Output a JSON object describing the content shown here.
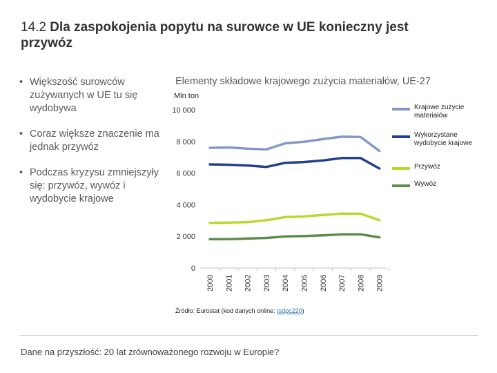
{
  "slide": {
    "number": "14.2",
    "title": "Dla zaspokojenia popytu na surowce w UE konieczny jest przywóz",
    "bullets": [
      "Większość surowców zużywanych w UE tu się wydobywa",
      "Coraz większe znaczenie ma jednak przywóz",
      "Podczas kryzysu zmniejszyły się: przywóz, wywóz i wydobycie krajowe"
    ],
    "footer": "Dane na przyszłość: 20 lat zrównoważonego rozwoju w Europie?"
  },
  "source": {
    "prefix": "Źródło: Eurostat (kod danych online: ",
    "code": "tsdpc220",
    "suffix": ")"
  },
  "chart_data": {
    "type": "line",
    "title": "Elementy składowe krajowego zużycia materiałów, UE-27",
    "unit_label": "Mln ton",
    "x": [
      "2000",
      "2001",
      "2002",
      "2003",
      "2004",
      "2005",
      "2006",
      "2007",
      "2008",
      "2009"
    ],
    "ylim": [
      0,
      10000
    ],
    "y_ticks": [
      0,
      2000,
      4000,
      6000,
      8000,
      10000
    ],
    "y_tick_labels": [
      "0",
      "2 000",
      "4 000",
      "6 000",
      "8 000",
      "10 000"
    ],
    "grid": false,
    "legend_position": "right",
    "series": [
      {
        "name": "Krajowe zużycie materiałów",
        "color": "#8497c8",
        "values": [
          7600,
          7620,
          7540,
          7500,
          7880,
          7980,
          8150,
          8300,
          8280,
          7400
        ]
      },
      {
        "name": "Wykorzystane wydobycie krajowe",
        "color": "#23408e",
        "values": [
          6550,
          6530,
          6480,
          6390,
          6650,
          6700,
          6800,
          6950,
          6950,
          6290
        ]
      },
      {
        "name": "Przywóz",
        "color": "#bfd630",
        "values": [
          2850,
          2870,
          2900,
          3020,
          3220,
          3260,
          3350,
          3440,
          3430,
          3020
        ]
      },
      {
        "name": "Wywóz",
        "color": "#5a8c4a",
        "values": [
          1820,
          1820,
          1860,
          1900,
          2000,
          2020,
          2060,
          2130,
          2130,
          1940
        ]
      }
    ]
  }
}
